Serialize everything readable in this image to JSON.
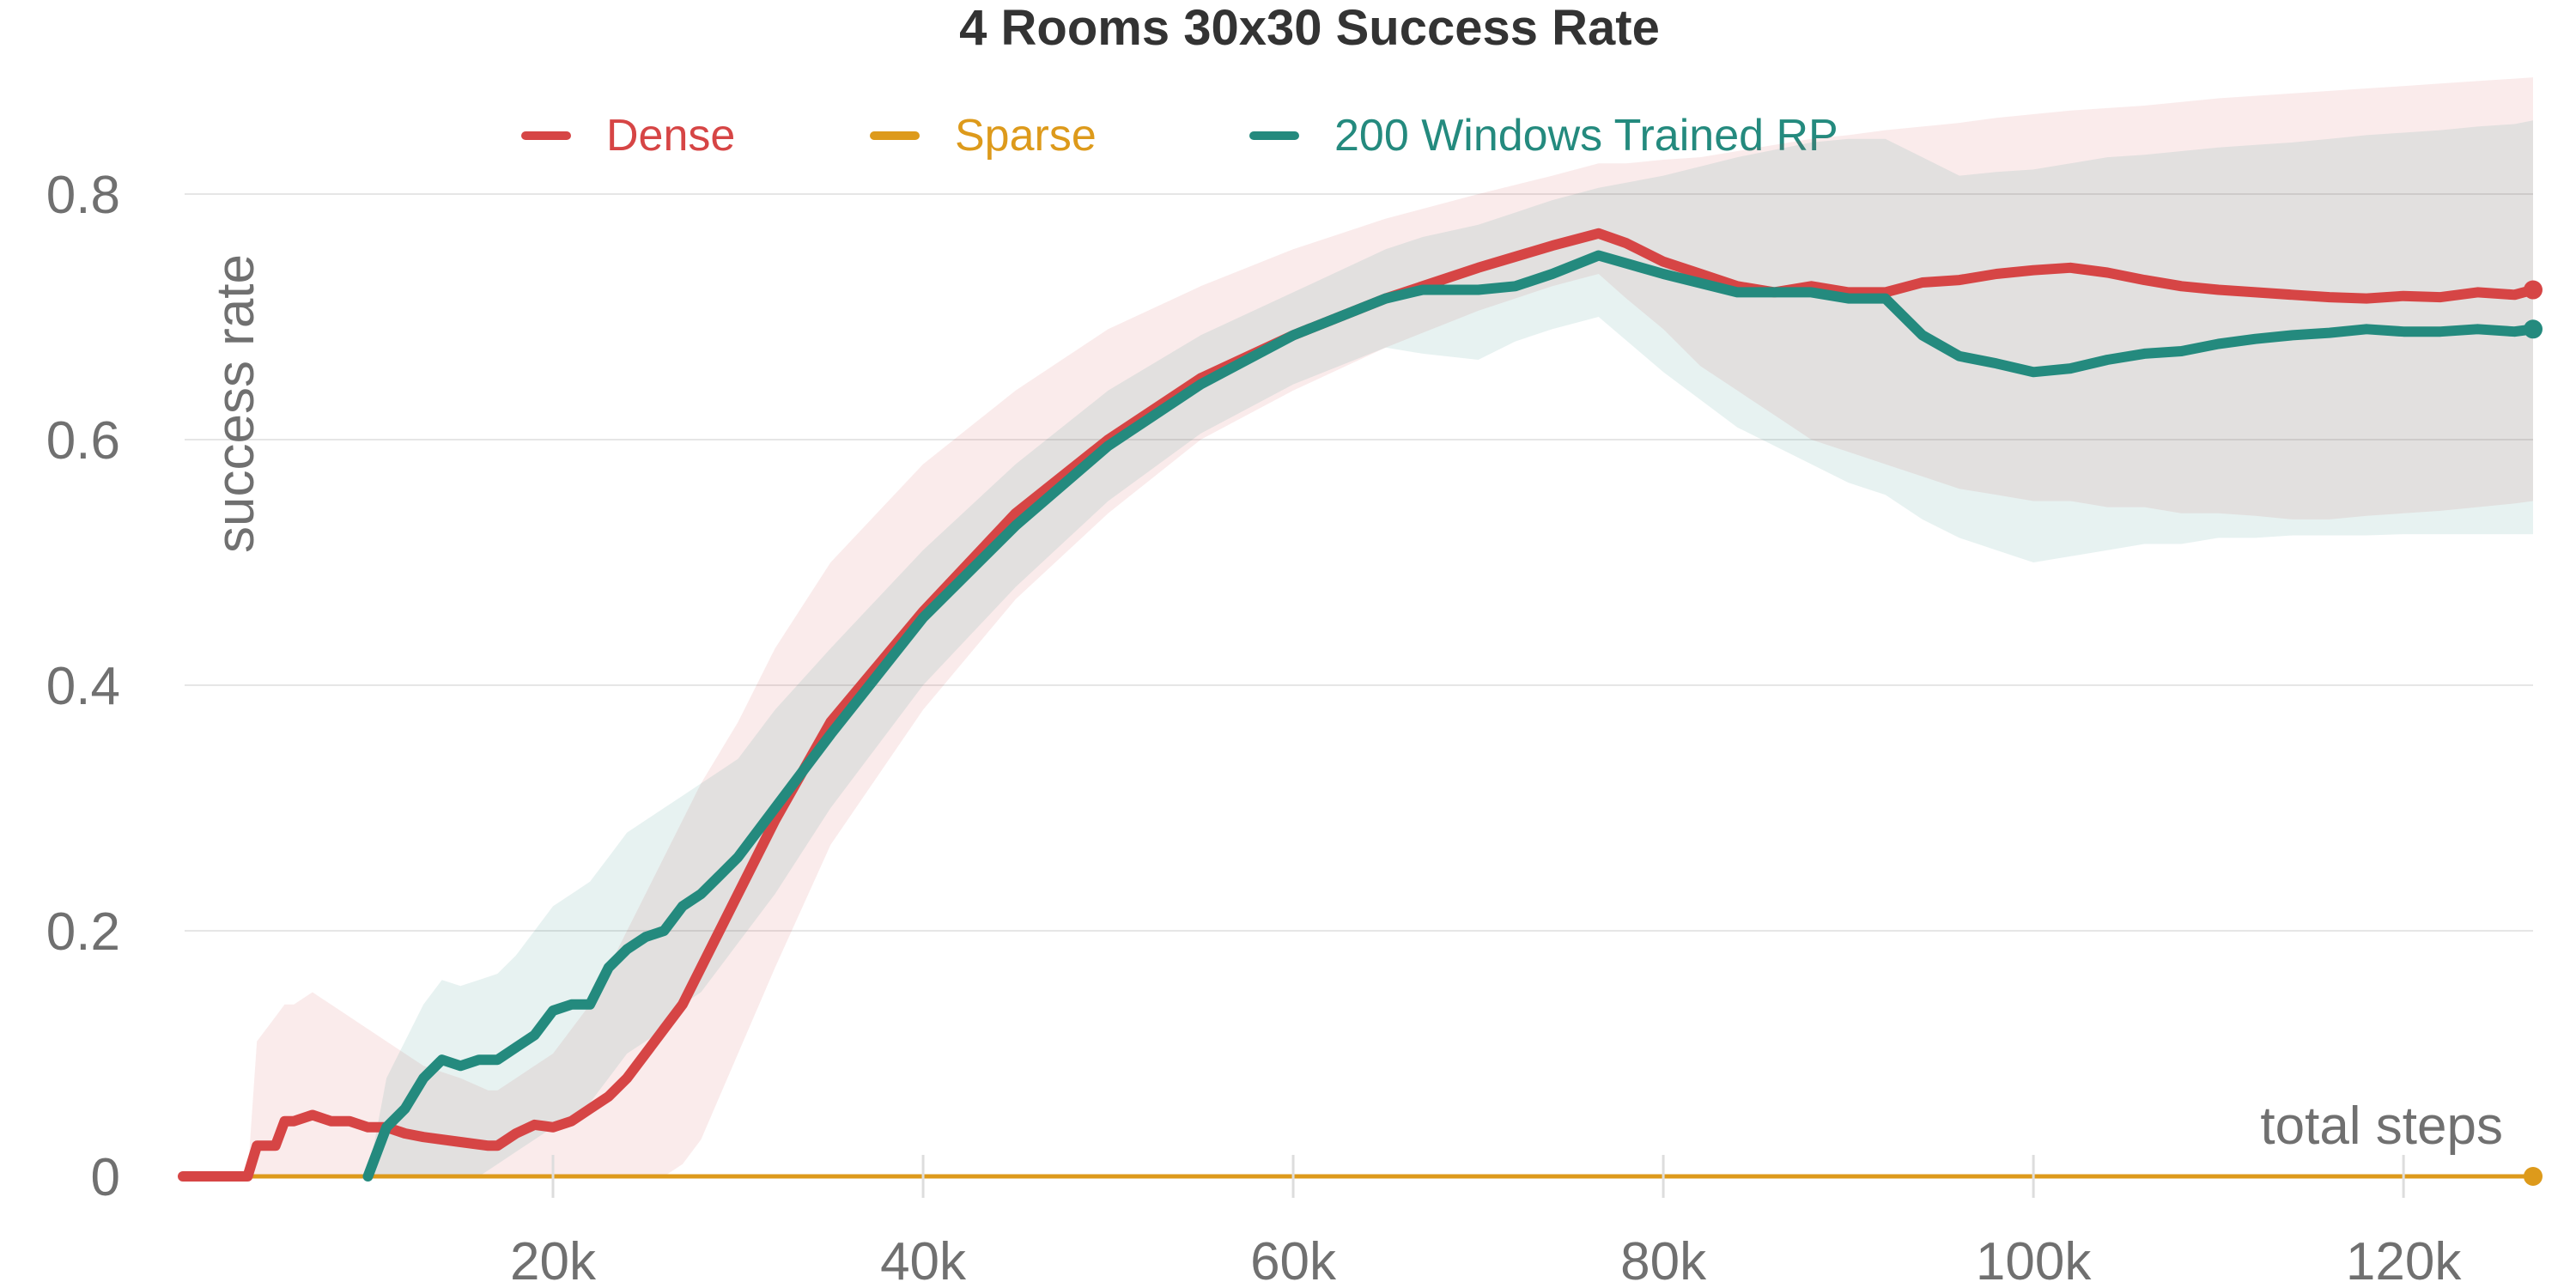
{
  "chart_data": {
    "type": "line",
    "title": "4 Rooms 30x30 Success Rate",
    "xlabel": "total steps",
    "ylabel": "success rate",
    "xlim": [
      0,
      127000
    ],
    "ylim": [
      -0.02,
      0.92
    ],
    "xticks": [
      20000,
      40000,
      60000,
      80000,
      100000,
      120000
    ],
    "xtick_labels": [
      "20k",
      "40k",
      "60k",
      "80k",
      "100k",
      "120k"
    ],
    "yticks": [
      0,
      0.2,
      0.4,
      0.6,
      0.8
    ],
    "ytick_labels": [
      "0",
      "0.2",
      "0.4",
      "0.6",
      "0.8"
    ],
    "grid": true,
    "legend_position": "top",
    "series": [
      {
        "name": "Dense",
        "color": "#d64545",
        "x": [
          0,
          3500,
          4000,
          5000,
          5500,
          6000,
          7000,
          8000,
          9000,
          10000,
          11000,
          12000,
          13000,
          15000,
          16500,
          17000,
          18000,
          19000,
          20000,
          21000,
          22000,
          23000,
          24000,
          25000,
          26000,
          27000,
          28000,
          30000,
          32000,
          35000,
          40000,
          45000,
          50000,
          55000,
          60000,
          65000,
          70000,
          74000,
          76500,
          78000,
          80000,
          82000,
          84000,
          86000,
          88000,
          90000,
          92000,
          94000,
          96000,
          98000,
          100000,
          102000,
          104000,
          106000,
          108000,
          110000,
          112000,
          114000,
          116000,
          118000,
          120000,
          122000,
          124000,
          126000,
          127000
        ],
        "y": [
          0,
          0,
          0.025,
          0.025,
          0.045,
          0.045,
          0.05,
          0.045,
          0.045,
          0.04,
          0.04,
          0.035,
          0.032,
          0.028,
          0.025,
          0.025,
          0.035,
          0.042,
          0.04,
          0.045,
          0.055,
          0.065,
          0.08,
          0.1,
          0.12,
          0.14,
          0.17,
          0.23,
          0.29,
          0.37,
          0.46,
          0.54,
          0.6,
          0.65,
          0.685,
          0.715,
          0.74,
          0.758,
          0.768,
          0.76,
          0.745,
          0.735,
          0.725,
          0.72,
          0.725,
          0.72,
          0.72,
          0.728,
          0.73,
          0.735,
          0.738,
          0.74,
          0.736,
          0.73,
          0.725,
          0.722,
          0.72,
          0.718,
          0.716,
          0.715,
          0.717,
          0.716,
          0.72,
          0.718,
          0.722
        ],
        "band_lower": [
          0,
          0,
          0,
          0,
          0,
          0,
          0,
          0,
          0,
          0,
          0,
          0,
          0,
          0,
          0,
          0,
          0,
          0,
          0,
          0,
          0,
          0,
          0,
          0,
          0,
          0.01,
          0.03,
          0.1,
          0.17,
          0.27,
          0.38,
          0.47,
          0.54,
          0.6,
          0.64,
          0.675,
          0.705,
          0.725,
          0.735,
          0.715,
          0.69,
          0.66,
          0.64,
          0.62,
          0.6,
          0.59,
          0.58,
          0.57,
          0.56,
          0.555,
          0.55,
          0.55,
          0.545,
          0.545,
          0.54,
          0.54,
          0.538,
          0.535,
          0.535,
          0.538,
          0.54,
          0.542,
          0.545,
          0.548,
          0.55
        ],
        "band_upper": [
          0,
          0,
          0.11,
          0.13,
          0.14,
          0.14,
          0.15,
          0.14,
          0.13,
          0.12,
          0.11,
          0.1,
          0.09,
          0.08,
          0.07,
          0.07,
          0.08,
          0.09,
          0.1,
          0.12,
          0.14,
          0.17,
          0.2,
          0.23,
          0.26,
          0.29,
          0.32,
          0.37,
          0.43,
          0.5,
          0.58,
          0.64,
          0.69,
          0.725,
          0.755,
          0.78,
          0.8,
          0.815,
          0.825,
          0.825,
          0.828,
          0.83,
          0.835,
          0.84,
          0.845,
          0.848,
          0.852,
          0.855,
          0.858,
          0.862,
          0.865,
          0.868,
          0.87,
          0.872,
          0.875,
          0.878,
          0.88,
          0.882,
          0.884,
          0.886,
          0.888,
          0.89,
          0.892,
          0.894,
          0.895
        ]
      },
      {
        "name": "Sparse",
        "color": "#dd9a1b",
        "x": [
          0,
          20000,
          40000,
          60000,
          80000,
          100000,
          120000,
          127000
        ],
        "y": [
          0,
          0,
          0,
          0,
          0,
          0,
          0,
          0
        ],
        "band_lower": [
          0,
          0,
          0,
          0,
          0,
          0,
          0,
          0
        ],
        "band_upper": [
          0,
          0,
          0,
          0,
          0,
          0,
          0,
          0
        ]
      },
      {
        "name": "200 Windows Trained RP",
        "color": "#248a7e",
        "x": [
          10000,
          11000,
          12000,
          13000,
          14000,
          15000,
          16000,
          17000,
          18000,
          19000,
          20000,
          21000,
          22000,
          23000,
          24000,
          25000,
          26000,
          27000,
          28000,
          29000,
          30000,
          32000,
          35000,
          40000,
          45000,
          50000,
          55000,
          60000,
          65000,
          67000,
          70000,
          72000,
          74000,
          76500,
          80000,
          84000,
          88000,
          90000,
          92000,
          94000,
          96000,
          98000,
          100000,
          102000,
          104000,
          106000,
          108000,
          110000,
          112000,
          114000,
          116000,
          118000,
          120000,
          122000,
          124000,
          126000,
          127000
        ],
        "y": [
          0,
          0.04,
          0.055,
          0.08,
          0.095,
          0.09,
          0.095,
          0.095,
          0.105,
          0.115,
          0.135,
          0.14,
          0.14,
          0.17,
          0.185,
          0.195,
          0.2,
          0.22,
          0.23,
          0.245,
          0.26,
          0.3,
          0.36,
          0.455,
          0.53,
          0.595,
          0.645,
          0.685,
          0.715,
          0.722,
          0.722,
          0.725,
          0.735,
          0.75,
          0.735,
          0.72,
          0.72,
          0.715,
          0.715,
          0.685,
          0.668,
          0.662,
          0.655,
          0.658,
          0.665,
          0.67,
          0.672,
          0.678,
          0.682,
          0.685,
          0.687,
          0.69,
          0.688,
          0.688,
          0.69,
          0.688,
          0.69
        ],
        "band_lower": [
          0,
          0,
          0,
          0,
          0,
          0,
          0,
          0.01,
          0.02,
          0.03,
          0.04,
          0.05,
          0.06,
          0.08,
          0.1,
          0.11,
          0.12,
          0.14,
          0.15,
          0.17,
          0.19,
          0.23,
          0.3,
          0.4,
          0.48,
          0.55,
          0.605,
          0.645,
          0.675,
          0.67,
          0.665,
          0.68,
          0.69,
          0.7,
          0.655,
          0.61,
          0.58,
          0.565,
          0.555,
          0.535,
          0.52,
          0.51,
          0.5,
          0.505,
          0.51,
          0.515,
          0.515,
          0.52,
          0.52,
          0.522,
          0.522,
          0.522,
          0.523,
          0.523,
          0.523,
          0.523,
          0.523
        ],
        "band_upper": [
          0,
          0.08,
          0.11,
          0.14,
          0.16,
          0.155,
          0.16,
          0.165,
          0.18,
          0.2,
          0.22,
          0.23,
          0.24,
          0.26,
          0.28,
          0.29,
          0.3,
          0.31,
          0.32,
          0.33,
          0.34,
          0.38,
          0.43,
          0.51,
          0.58,
          0.64,
          0.685,
          0.72,
          0.755,
          0.765,
          0.775,
          0.785,
          0.795,
          0.805,
          0.815,
          0.83,
          0.842,
          0.845,
          0.845,
          0.83,
          0.815,
          0.818,
          0.82,
          0.825,
          0.83,
          0.832,
          0.835,
          0.838,
          0.84,
          0.842,
          0.845,
          0.848,
          0.85,
          0.852,
          0.855,
          0.857,
          0.86
        ]
      }
    ]
  }
}
